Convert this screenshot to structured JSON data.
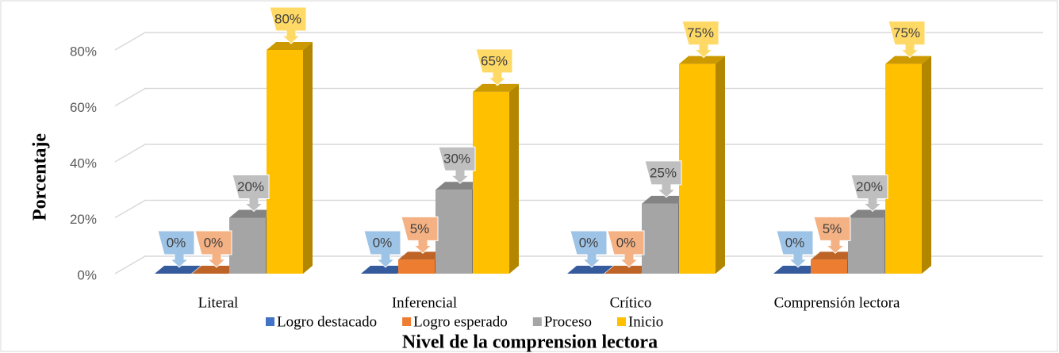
{
  "chart_data": {
    "type": "bar3d",
    "y_label": "Porcentaje",
    "x_label": "Nivel de la comprension lectora",
    "categories": [
      "Literal",
      "Inferencial",
      "Crítico",
      "Comprensión lectora"
    ],
    "series": [
      {
        "name": "Logro destacado",
        "color": "#4472c4",
        "label_color": "#9dc3e6",
        "values": [
          0,
          0,
          0,
          0
        ],
        "value_labels": [
          "0%",
          "0%",
          "0%",
          "0%"
        ]
      },
      {
        "name": "Logro esperado",
        "color": "#ed7d31",
        "label_color": "#f4b183",
        "values": [
          0,
          5,
          0,
          5
        ],
        "value_labels": [
          "0%",
          "5%",
          "0%",
          "5%"
        ]
      },
      {
        "name": "Proceso",
        "color": "#a5a5a5",
        "label_color": "#bfbfbf",
        "values": [
          20,
          30,
          25,
          20
        ],
        "value_labels": [
          "20%",
          "30%",
          "25%",
          "20%"
        ]
      },
      {
        "name": "Inicio",
        "color": "#ffc000",
        "label_color": "#ffd966",
        "values": [
          80,
          65,
          75,
          75
        ],
        "value_labels": [
          "80%",
          "65%",
          "75%",
          "75%"
        ]
      }
    ],
    "ylim": [
      0,
      80
    ],
    "yticks": [
      {
        "value": 0,
        "label": "0%"
      },
      {
        "value": 20,
        "label": "20%"
      },
      {
        "value": 40,
        "label": "40%"
      },
      {
        "value": 60,
        "label": "60%"
      },
      {
        "value": 80,
        "label": "80%"
      }
    ],
    "grid": true,
    "legend": "bottom"
  }
}
